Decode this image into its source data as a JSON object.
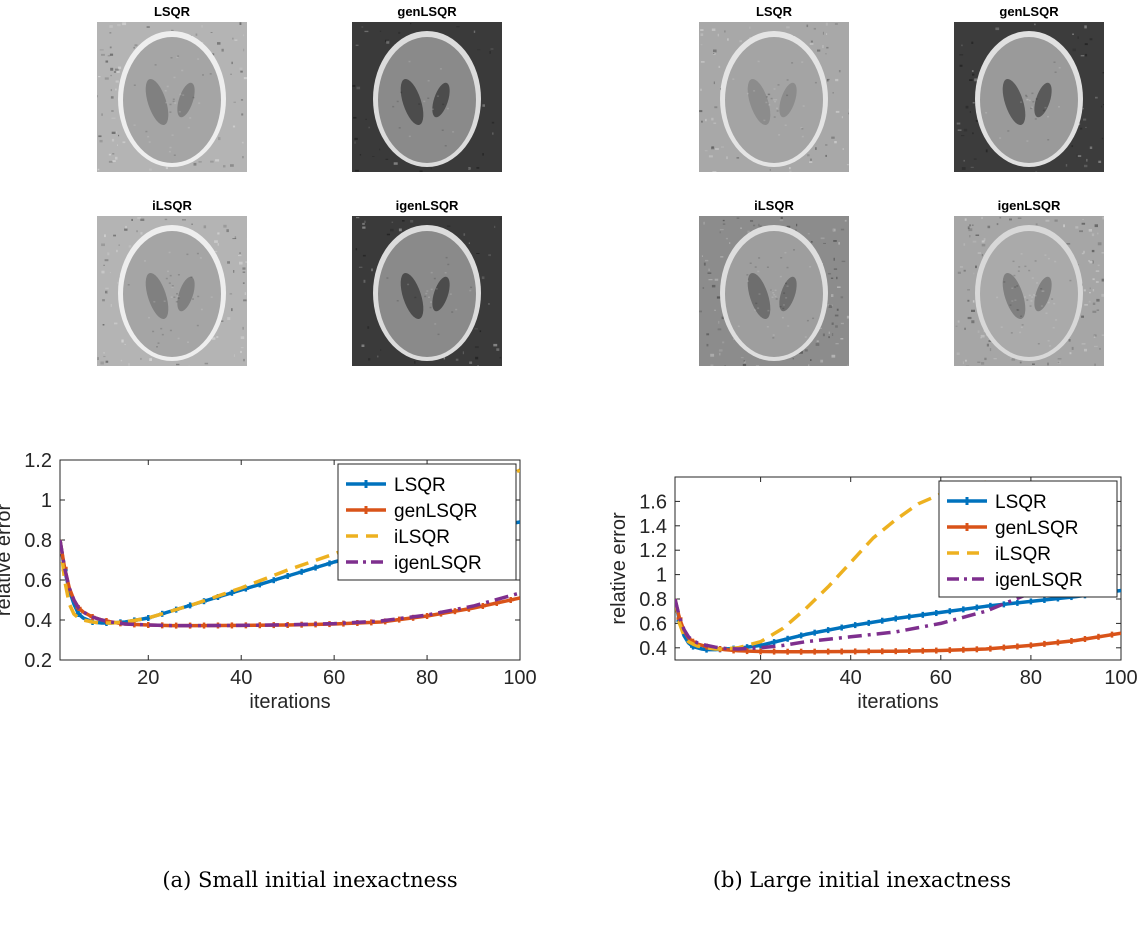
{
  "panels": [
    {
      "caption": "(a) Small initial inexactness",
      "reconstructions": [
        {
          "title": "LSQR",
          "bg": "#b4b4b4",
          "ring": "#eeeeee",
          "inner": "#a5a5a5",
          "blob": "#808080",
          "noise": 0.55
        },
        {
          "title": "genLSQR",
          "bg": "#3a3a3a",
          "ring": "#dcdcdc",
          "inner": "#8a8a8a",
          "blob": "#4c4c4c",
          "noise": 0.3
        },
        {
          "title": "iLSQR",
          "bg": "#b4b4b4",
          "ring": "#eeeeee",
          "inner": "#a5a5a5",
          "blob": "#808080",
          "noise": 0.6
        },
        {
          "title": "igenLSQR",
          "bg": "#3a3a3a",
          "ring": "#dcdcdc",
          "inner": "#8a8a8a",
          "blob": "#4c4c4c",
          "noise": 0.4
        }
      ]
    },
    {
      "caption": "(b) Large initial inexactness",
      "reconstructions": [
        {
          "title": "LSQR",
          "bg": "#a8a8a8",
          "ring": "#e4e4e4",
          "inner": "#a4a4a4",
          "blob": "#8c8c8c",
          "noise": 0.5
        },
        {
          "title": "genLSQR",
          "bg": "#3c3c3c",
          "ring": "#e0e0e0",
          "inner": "#9a9a9a",
          "blob": "#5a5a5a",
          "noise": 0.4
        },
        {
          "title": "iLSQR",
          "bg": "#8c8c8c",
          "ring": "#dedede",
          "inner": "#9e9e9e",
          "blob": "#6e6e6e",
          "noise": 0.7
        },
        {
          "title": "igenLSQR",
          "bg": "#a6a6a6",
          "ring": "#d8d8d8",
          "inner": "#aaaaaa",
          "blob": "#808080",
          "noise": 0.85
        }
      ]
    }
  ],
  "chart_data": [
    {
      "type": "line",
      "xlabel": "iterations",
      "ylabel": "relative error",
      "xlim": [
        1,
        100
      ],
      "ylim": [
        0.2,
        1.2
      ],
      "xticks": [
        20,
        40,
        60,
        80,
        100
      ],
      "yticks": [
        0.2,
        0.4,
        0.6,
        0.8,
        1,
        1.2
      ],
      "ytick_labels": [
        "0.2",
        "0.4",
        "0.6",
        "0.8",
        "1",
        "1.2"
      ],
      "legend_position": "top-right",
      "series": [
        {
          "name": "LSQR",
          "color": "#0072bd",
          "style": "solid-marker",
          "x": [
            1,
            2,
            3,
            4,
            5,
            6,
            7,
            8,
            10,
            12,
            15,
            20,
            30,
            40,
            50,
            60,
            70,
            80,
            90,
            100
          ],
          "y": [
            0.8,
            0.65,
            0.55,
            0.48,
            0.43,
            0.41,
            0.4,
            0.39,
            0.385,
            0.385,
            0.39,
            0.41,
            0.48,
            0.55,
            0.62,
            0.69,
            0.75,
            0.8,
            0.85,
            0.89
          ]
        },
        {
          "name": "genLSQR",
          "color": "#d95319",
          "style": "solid-marker",
          "x": [
            1,
            2,
            3,
            4,
            5,
            6,
            8,
            10,
            12,
            15,
            20,
            25,
            30,
            40,
            50,
            60,
            70,
            80,
            90,
            100
          ],
          "y": [
            0.8,
            0.66,
            0.56,
            0.5,
            0.46,
            0.44,
            0.415,
            0.4,
            0.39,
            0.38,
            0.375,
            0.372,
            0.372,
            0.373,
            0.375,
            0.38,
            0.39,
            0.42,
            0.46,
            0.51
          ]
        },
        {
          "name": "iLSQR",
          "color": "#edb120",
          "style": "dashed",
          "x": [
            1,
            2,
            3,
            4,
            5,
            6,
            7,
            8,
            10,
            12,
            15,
            20,
            30,
            40,
            50,
            60,
            70,
            80,
            90,
            100
          ],
          "y": [
            0.8,
            0.6,
            0.48,
            0.43,
            0.41,
            0.4,
            0.395,
            0.39,
            0.385,
            0.385,
            0.39,
            0.41,
            0.48,
            0.56,
            0.65,
            0.73,
            0.82,
            0.92,
            1.03,
            1.15
          ]
        },
        {
          "name": "igenLSQR",
          "color": "#7e2f8e",
          "style": "dashdot",
          "x": [
            1,
            2,
            3,
            4,
            5,
            6,
            8,
            10,
            12,
            15,
            20,
            25,
            30,
            40,
            50,
            60,
            70,
            80,
            90,
            100
          ],
          "y": [
            0.8,
            0.66,
            0.56,
            0.5,
            0.46,
            0.44,
            0.415,
            0.4,
            0.39,
            0.38,
            0.375,
            0.372,
            0.372,
            0.373,
            0.376,
            0.382,
            0.395,
            0.425,
            0.47,
            0.535
          ]
        }
      ]
    },
    {
      "type": "line",
      "xlabel": "iterations",
      "ylabel": "relative error",
      "xlim": [
        1,
        100
      ],
      "ylim": [
        0.3,
        1.8
      ],
      "xticks": [
        20,
        40,
        60,
        80,
        100
      ],
      "yticks": [
        0.4,
        0.6,
        0.8,
        1,
        1.2,
        1.4,
        1.6
      ],
      "ytick_labels": [
        "0.4",
        "0.6",
        "0.8",
        "1",
        "1.2",
        "1.4",
        "1.6"
      ],
      "legend_position": "top-right",
      "series": [
        {
          "name": "LSQR",
          "color": "#0072bd",
          "style": "solid-marker",
          "x": [
            1,
            2,
            3,
            4,
            5,
            6,
            7,
            8,
            10,
            12,
            15,
            20,
            30,
            40,
            50,
            60,
            70,
            80,
            90,
            100
          ],
          "y": [
            0.8,
            0.62,
            0.5,
            0.44,
            0.41,
            0.4,
            0.39,
            0.385,
            0.385,
            0.39,
            0.395,
            0.42,
            0.51,
            0.58,
            0.64,
            0.69,
            0.74,
            0.78,
            0.82,
            0.87
          ]
        },
        {
          "name": "genLSQR",
          "color": "#d95319",
          "style": "solid-marker",
          "x": [
            1,
            2,
            3,
            4,
            5,
            6,
            8,
            10,
            12,
            15,
            20,
            25,
            30,
            40,
            50,
            60,
            70,
            80,
            90,
            100
          ],
          "y": [
            0.8,
            0.64,
            0.54,
            0.48,
            0.45,
            0.43,
            0.41,
            0.395,
            0.385,
            0.375,
            0.37,
            0.368,
            0.368,
            0.37,
            0.372,
            0.378,
            0.39,
            0.42,
            0.46,
            0.52
          ]
        },
        {
          "name": "iLSQR",
          "color": "#edb120",
          "style": "dashed",
          "x": [
            1,
            2,
            3,
            4,
            5,
            6,
            8,
            10,
            12,
            15,
            20,
            25,
            30,
            35,
            40,
            45,
            50,
            55,
            60,
            65,
            70
          ],
          "y": [
            0.8,
            0.6,
            0.5,
            0.45,
            0.43,
            0.415,
            0.4,
            0.39,
            0.39,
            0.4,
            0.45,
            0.56,
            0.72,
            0.9,
            1.1,
            1.3,
            1.45,
            1.58,
            1.66,
            1.72,
            1.76
          ]
        },
        {
          "name": "igenLSQR",
          "color": "#7e2f8e",
          "style": "dashdot",
          "x": [
            1,
            2,
            3,
            4,
            5,
            6,
            8,
            10,
            12,
            15,
            20,
            25,
            30,
            40,
            50,
            60,
            70,
            80,
            90,
            100
          ],
          "y": [
            0.8,
            0.65,
            0.55,
            0.49,
            0.46,
            0.44,
            0.42,
            0.405,
            0.395,
            0.39,
            0.4,
            0.42,
            0.45,
            0.49,
            0.53,
            0.6,
            0.7,
            0.85,
            1.03,
            1.22
          ]
        }
      ]
    }
  ]
}
